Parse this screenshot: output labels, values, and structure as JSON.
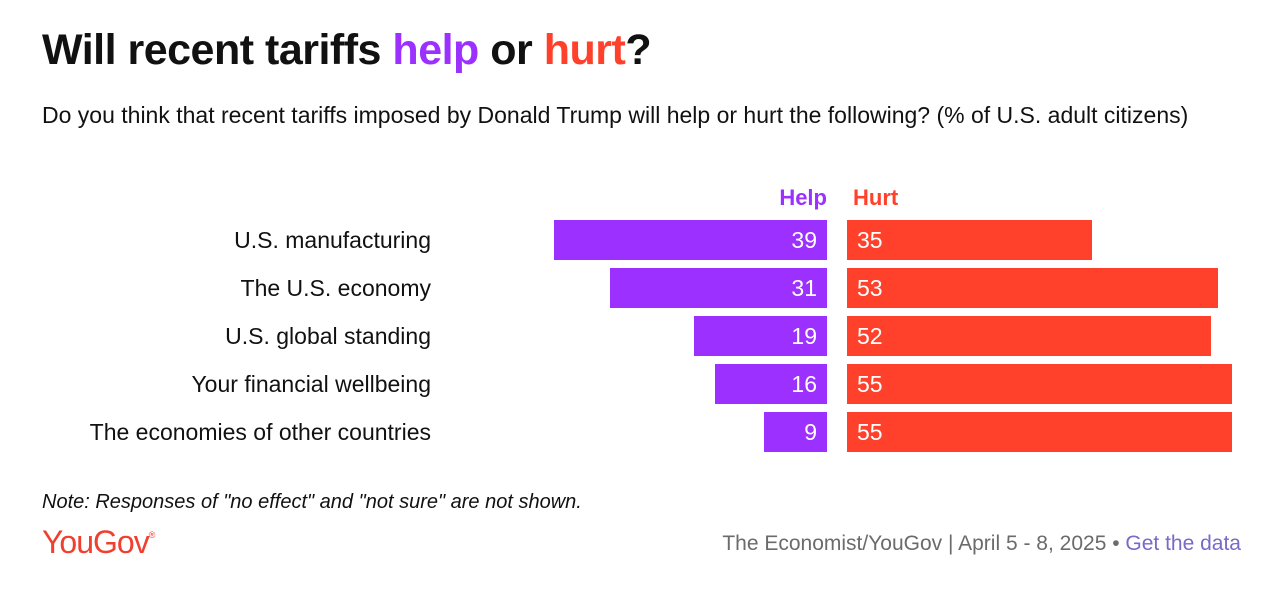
{
  "title": {
    "prefix": "Will recent tariffs ",
    "help_word": "help",
    "middle": " or ",
    "hurt_word": "hurt",
    "suffix": "?"
  },
  "subtitle": "Do you think that recent tariffs imposed by Donald Trump will help or hurt the following? (% of U.S. adult citizens)",
  "note": "Note: Responses of \"no effect\" and \"not sure\" are not shown.",
  "footer": {
    "logo": "YouGov",
    "logo_mark": "®",
    "source": "The Economist/YouGov | April 5 - 8, 2025",
    "separator": " • ",
    "link": "Get the data"
  },
  "colors": {
    "help": "#9b30ff",
    "hurt": "#ff412c",
    "text": "#111111",
    "muted": "#6b6b6b",
    "link": "#7b68c9"
  },
  "chart_data": {
    "type": "bar",
    "orientation": "horizontal-diverging",
    "categories": [
      "U.S. manufacturing",
      "The U.S. economy",
      "U.S. global standing",
      "Your financial wellbeing",
      "The economies of other countries"
    ],
    "series": [
      {
        "name": "Help",
        "color": "#9b30ff",
        "values": [
          39,
          31,
          19,
          16,
          9
        ]
      },
      {
        "name": "Hurt",
        "color": "#ff412c",
        "values": [
          35,
          53,
          52,
          55,
          55
        ]
      }
    ],
    "unit": "%",
    "legend": "top"
  }
}
